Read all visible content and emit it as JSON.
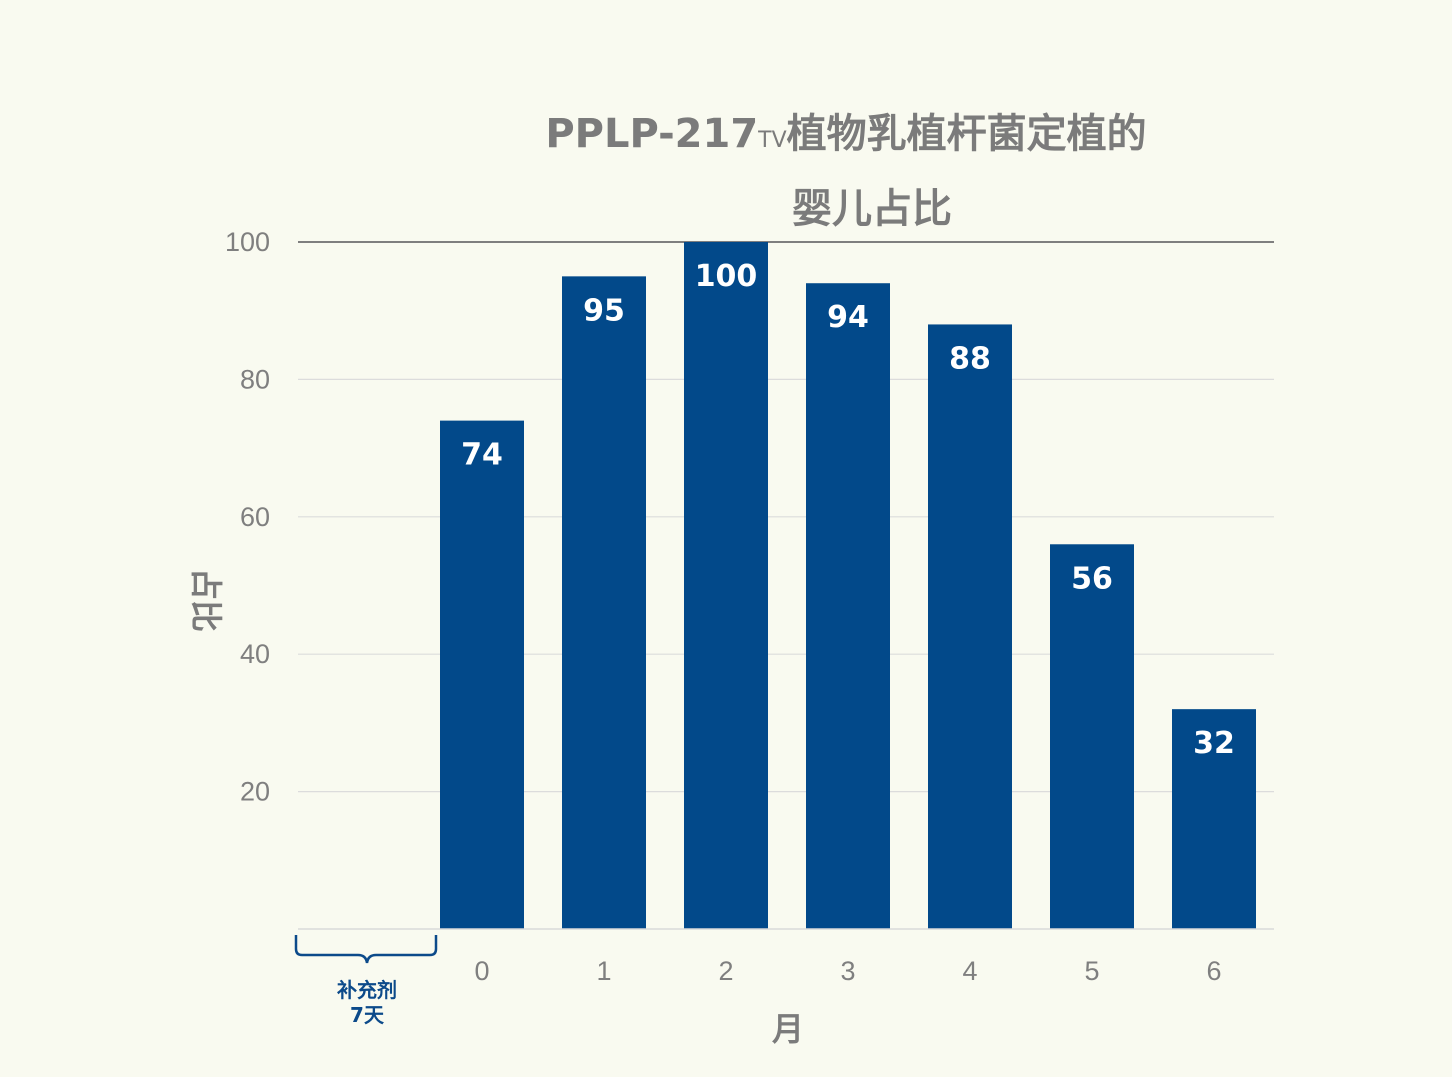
{
  "chart_data": {
    "type": "bar",
    "title_main": "PPLP-217",
    "title_mark": "TV",
    "title_rest": "植物乳植杆菌定植的",
    "title_line2": "婴儿占比",
    "xlabel": "月",
    "ylabel": "占比",
    "categories": [
      "0",
      "1",
      "2",
      "3",
      "4",
      "5",
      "6"
    ],
    "values": [
      74,
      95,
      100,
      94,
      88,
      56,
      32
    ],
    "ylim": [
      0,
      100
    ],
    "yticks": [
      "20",
      "40",
      "60",
      "80",
      "100"
    ],
    "grid": true,
    "bar_color": "#02498a",
    "extra_category": {
      "line1": "补充剂",
      "line2": "7天"
    }
  }
}
